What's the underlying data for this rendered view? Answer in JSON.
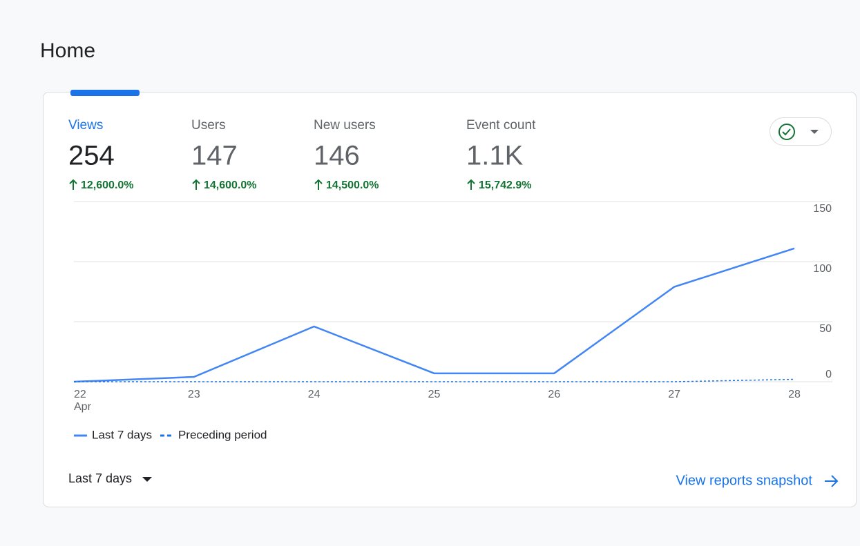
{
  "page": {
    "title": "Home"
  },
  "metrics": [
    {
      "label": "Views",
      "value": "254",
      "change": "12,600.0%"
    },
    {
      "label": "Users",
      "value": "147",
      "change": "14,600.0%"
    },
    {
      "label": "New users",
      "value": "146",
      "change": "14,500.0%"
    },
    {
      "label": "Event count",
      "value": "1.1K",
      "change": "15,742.9%"
    }
  ],
  "chart_data": {
    "type": "line",
    "categories": [
      "22",
      "23",
      "24",
      "25",
      "26",
      "27",
      "28"
    ],
    "x_sublabel": "Apr",
    "series": [
      {
        "name": "Last 7 days",
        "color": "#4285f4",
        "dashed": false,
        "values": [
          0,
          4,
          46,
          7,
          7,
          79,
          111
        ]
      },
      {
        "name": "Preceding period",
        "color": "#1a73e8",
        "dashed": true,
        "values": [
          0,
          0,
          0,
          0,
          0,
          0,
          2
        ]
      }
    ],
    "ylim": [
      0,
      150
    ],
    "yticks": [
      0,
      50,
      100,
      150
    ],
    "grid": true
  },
  "footer": {
    "range": "Last 7 days",
    "link": "View reports snapshot"
  }
}
